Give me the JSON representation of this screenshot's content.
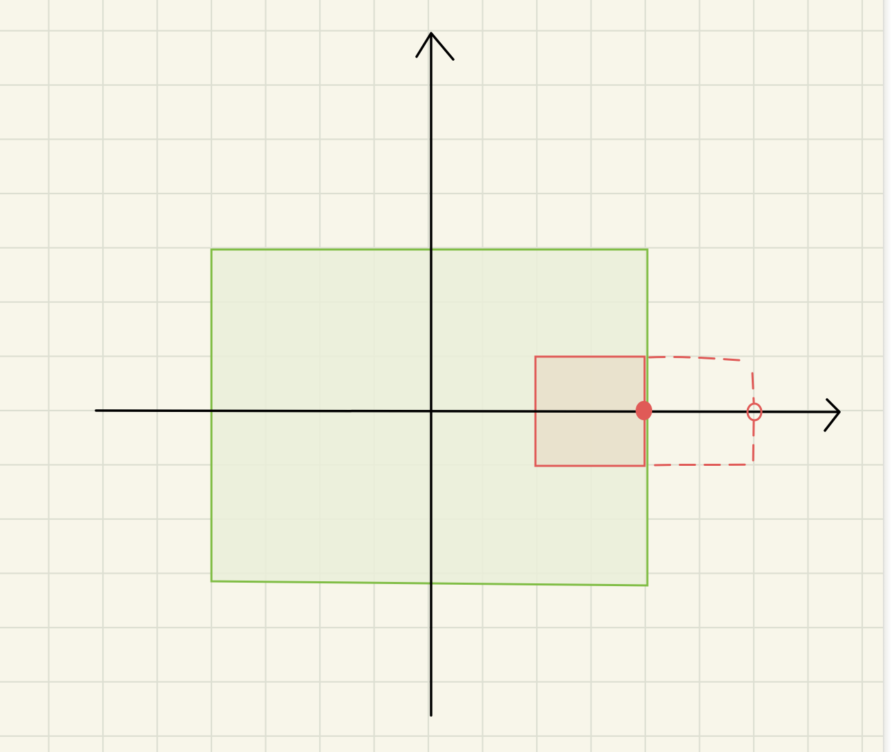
{
  "colors": {
    "paper": "#f8f6ea",
    "grid": "#dddfd2",
    "axis": "#000000",
    "outer_stroke": "#80bd45",
    "outer_fill": "#eaefd9",
    "inner_stroke": "#e05a57",
    "inner_fill": "#e9dfca",
    "dashed_stroke": "#e05a57"
  },
  "diagram": {
    "icons": {
      "x_arrow": "arrow-right-icon",
      "y_arrow": "arrow-up-icon",
      "filled_dot": "filled-dot-icon",
      "open_dot": "open-circle-icon"
    }
  }
}
